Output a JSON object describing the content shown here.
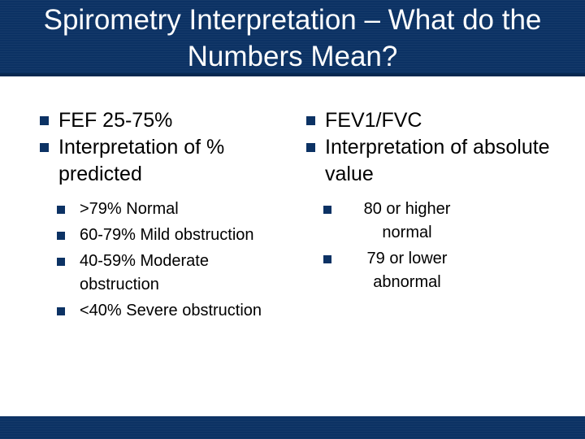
{
  "slide": {
    "title": "Spirometry Interpretation – What do the Numbers Mean?",
    "colors": {
      "bar": "#0c3264",
      "bullet": "#0c3264",
      "title_text": "#ffffff",
      "body_text": "#000000"
    },
    "bullet_icon": "square-bullet-icon"
  },
  "left": {
    "points": [
      {
        "label": "FEF 25-75%"
      },
      {
        "label": "Interpretation of % predicted"
      }
    ],
    "sub_points": [
      {
        "label": ">79% Normal"
      },
      {
        "label": "60-79% Mild obstruction"
      },
      {
        "label": "40-59% Moderate obstruction"
      },
      {
        "label": "<40% Severe obstruction"
      }
    ]
  },
  "right": {
    "points": [
      {
        "label": "FEV1/FVC"
      },
      {
        "label": "Interpretation of absolute value"
      }
    ],
    "sub_points": [
      {
        "label": "80 or higher normal"
      },
      {
        "label": "79 or lower abnormal"
      }
    ]
  }
}
